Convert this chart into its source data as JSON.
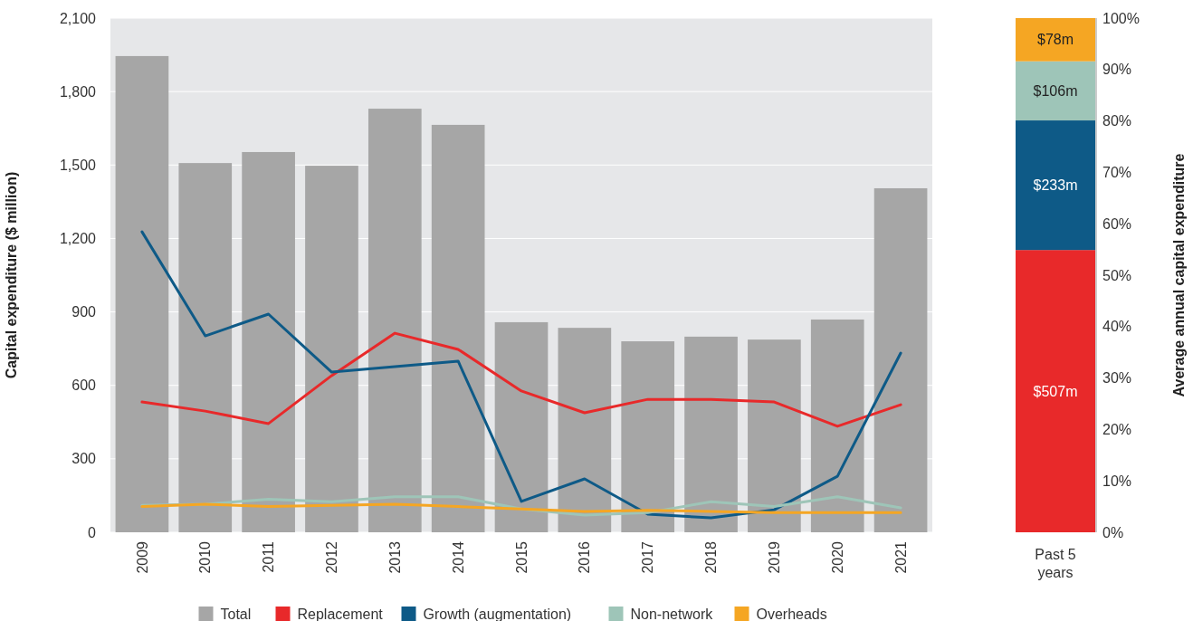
{
  "chart_data": [
    {
      "type": "bar",
      "categories": [
        "2009",
        "2010",
        "2011",
        "2012",
        "2013",
        "2014",
        "2015",
        "2016",
        "2017",
        "2018",
        "2019",
        "2020",
        "2021"
      ],
      "ylabel": "Capital expenditure ($ million)",
      "ylim": [
        0,
        2100
      ],
      "yticks": [
        0,
        300,
        600,
        900,
        {
          "value": 1200,
          "label": "1,200"
        },
        {
          "value": 1500,
          "label": "1,500"
        },
        {
          "value": 1800,
          "label": "1,800"
        },
        {
          "value": 2100,
          "label": "2,100"
        }
      ],
      "grid": "y",
      "legend": "bottom",
      "series": [
        {
          "name": "Total",
          "type": "bar",
          "color": "#a6a6a6",
          "values": [
            1945,
            1508,
            1553,
            1497,
            1730,
            1664,
            858,
            835,
            780,
            799,
            787,
            869,
            1405
          ]
        },
        {
          "name": "Replacement",
          "type": "line",
          "color": "#e8292a",
          "values": [
            532,
            495,
            444,
            640,
            813,
            747,
            577,
            488,
            543,
            543,
            532,
            433,
            521
          ]
        },
        {
          "name": "Growth (augmentation)",
          "type": "line",
          "color": "#0e5a87",
          "values": [
            1227,
            802,
            891,
            654,
            677,
            699,
            126,
            218,
            74,
            59,
            92,
            229,
            732
          ]
        },
        {
          "name": "Non-network",
          "type": "line",
          "color": "#9ec5b8",
          "values": [
            110,
            115,
            135,
            125,
            145,
            145,
            95,
            70,
            80,
            125,
            105,
            145,
            100
          ]
        },
        {
          "name": "Overheads",
          "type": "line",
          "color": "#f5a623",
          "values": [
            105,
            115,
            105,
            110,
            115,
            105,
            95,
            85,
            90,
            85,
            80,
            80,
            80
          ]
        }
      ]
    },
    {
      "type": "bar",
      "stacked": true,
      "categories": [
        "Past 5 years"
      ],
      "ylabel": "Average annual capital expenditure",
      "ylim": [
        0,
        100
      ],
      "yticks": [
        {
          "value": 0,
          "label": "0%"
        },
        {
          "value": 10,
          "label": "10%"
        },
        {
          "value": 20,
          "label": "20%"
        },
        {
          "value": 30,
          "label": "30%"
        },
        {
          "value": 40,
          "label": "40%"
        },
        {
          "value": 50,
          "label": "50%"
        },
        {
          "value": 60,
          "label": "60%"
        },
        {
          "value": 70,
          "label": "70%"
        },
        {
          "value": 80,
          "label": "80%"
        },
        {
          "value": 90,
          "label": "90%"
        },
        {
          "value": 100,
          "label": "100%"
        }
      ],
      "annotations": [
        "$507m",
        "$233m",
        "$106m",
        "$78m"
      ],
      "series": [
        {
          "color": "#e8292a",
          "values": [
            54.9
          ]
        },
        {
          "color": "#0e5a87",
          "values": [
            25.2
          ]
        },
        {
          "color": "#9ec5b8",
          "values": [
            11.5
          ]
        },
        {
          "color": "#f5a623",
          "values": [
            8.4
          ]
        }
      ]
    }
  ]
}
